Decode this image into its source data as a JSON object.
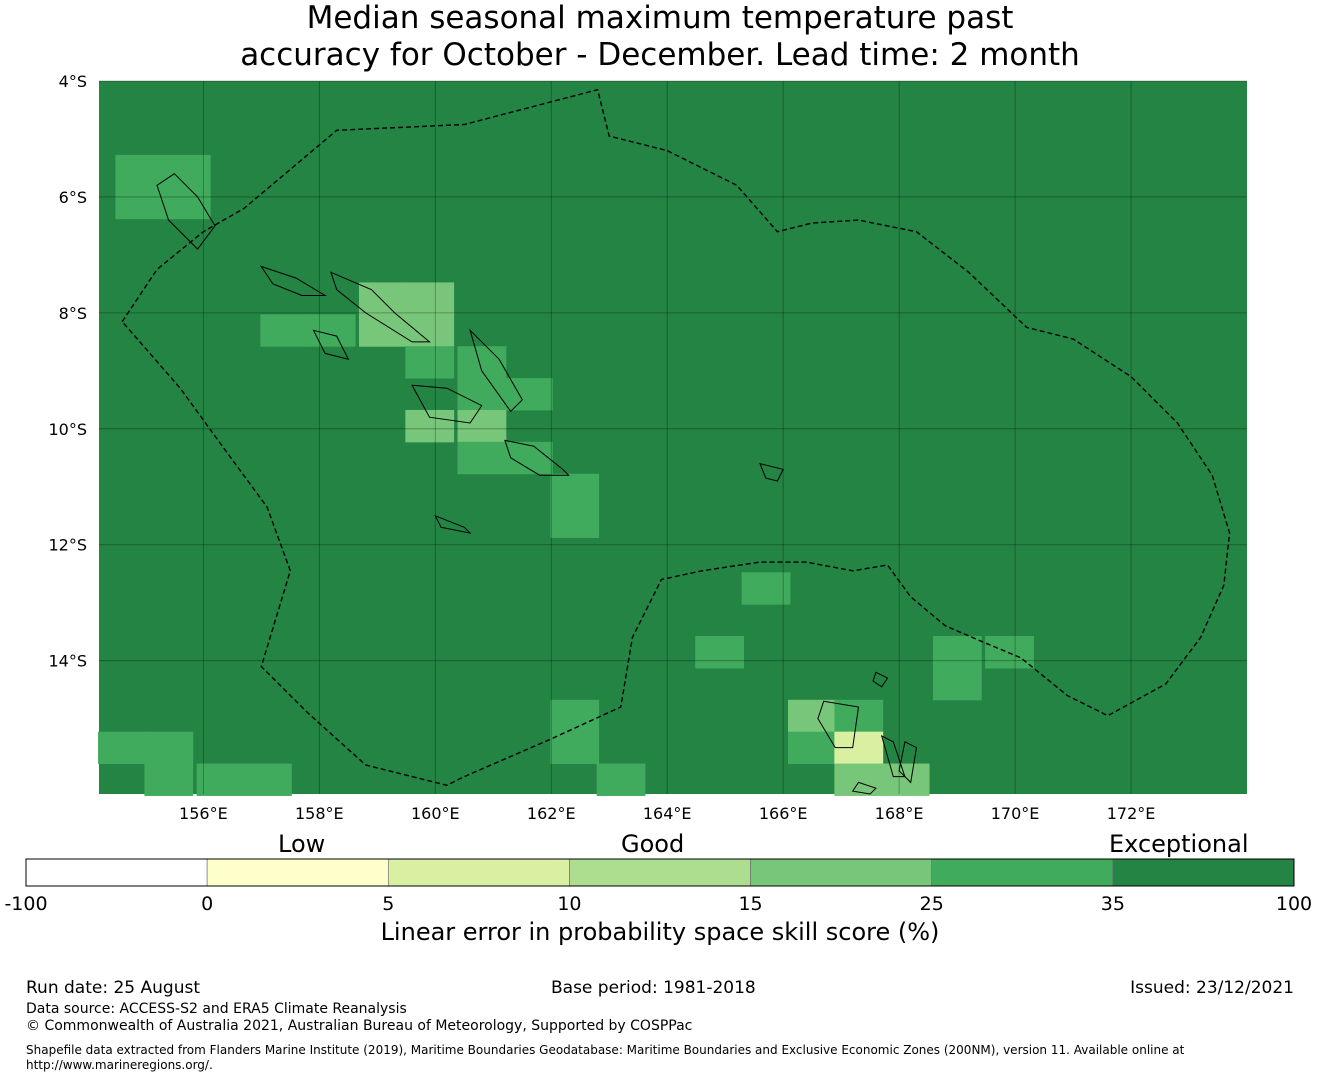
{
  "title": {
    "line1": "Median seasonal maximum temperature past",
    "line2": "accuracy for October - December. Lead time: 2 month"
  },
  "map": {
    "lat_range": [
      -16.3,
      -4
    ],
    "lon_range": [
      154.2,
      174
    ],
    "lat_ticks": [
      {
        "value": -4,
        "label": "4°S"
      },
      {
        "value": -6,
        "label": "6°S"
      },
      {
        "value": -8,
        "label": "8°S"
      },
      {
        "value": -10,
        "label": "10°S"
      },
      {
        "value": -12,
        "label": "12°S"
      },
      {
        "value": -14,
        "label": "14°S"
      }
    ],
    "lon_ticks": [
      {
        "value": 156,
        "label": "156°E"
      },
      {
        "value": 158,
        "label": "158°E"
      },
      {
        "value": 160,
        "label": "160°E"
      },
      {
        "value": 162,
        "label": "162°E"
      },
      {
        "value": 164,
        "label": "164°E"
      },
      {
        "value": 166,
        "label": "166°E"
      },
      {
        "value": 168,
        "label": "168°E"
      },
      {
        "value": 170,
        "label": "170°E"
      },
      {
        "value": 172,
        "label": "172°E"
      }
    ],
    "background_class": "35-100",
    "grid_cell_deg": 0.833,
    "cells": [
      {
        "lon": 154.9,
        "lat": -5.55,
        "cls": "25-35"
      },
      {
        "lon": 154.9,
        "lat": -6.1,
        "cls": "25-35"
      },
      {
        "lon": 155.7,
        "lat": -5.55,
        "cls": "25-35"
      },
      {
        "lon": 155.7,
        "lat": -6.1,
        "cls": "25-35"
      },
      {
        "lon": 159.1,
        "lat": -7.75,
        "cls": "15-25"
      },
      {
        "lon": 159.1,
        "lat": -8.3,
        "cls": "15-25"
      },
      {
        "lon": 159.9,
        "lat": -7.75,
        "cls": "15-25"
      },
      {
        "lon": 159.9,
        "lat": -8.3,
        "cls": "15-25"
      },
      {
        "lon": 157.4,
        "lat": -8.3,
        "cls": "25-35"
      },
      {
        "lon": 158.2,
        "lat": -8.3,
        "cls": "25-35"
      },
      {
        "lon": 159.9,
        "lat": -8.85,
        "cls": "25-35"
      },
      {
        "lon": 160.8,
        "lat": -8.85,
        "cls": "25-35"
      },
      {
        "lon": 160.8,
        "lat": -9.4,
        "cls": "25-35"
      },
      {
        "lon": 161.6,
        "lat": -9.4,
        "cls": "25-35"
      },
      {
        "lon": 159.9,
        "lat": -9.95,
        "cls": "15-25"
      },
      {
        "lon": 160.8,
        "lat": -9.95,
        "cls": "15-25"
      },
      {
        "lon": 160.8,
        "lat": -10.5,
        "cls": "25-35"
      },
      {
        "lon": 161.6,
        "lat": -10.5,
        "cls": "25-35"
      },
      {
        "lon": 162.4,
        "lat": -11.05,
        "cls": "25-35"
      },
      {
        "lon": 162.4,
        "lat": -11.6,
        "cls": "25-35"
      },
      {
        "lon": 165.7,
        "lat": -12.75,
        "cls": "25-35"
      },
      {
        "lon": 164.9,
        "lat": -13.85,
        "cls": "25-35"
      },
      {
        "lon": 169.0,
        "lat": -13.85,
        "cls": "25-35"
      },
      {
        "lon": 169.9,
        "lat": -13.85,
        "cls": "25-35"
      },
      {
        "lon": 169.0,
        "lat": -14.4,
        "cls": "25-35"
      },
      {
        "lon": 162.4,
        "lat": -14.95,
        "cls": "25-35"
      },
      {
        "lon": 162.4,
        "lat": -15.5,
        "cls": "25-35"
      },
      {
        "lon": 163.2,
        "lat": -16.05,
        "cls": "25-35"
      },
      {
        "lon": 166.5,
        "lat": -14.95,
        "cls": "15-25"
      },
      {
        "lon": 167.3,
        "lat": -14.95,
        "cls": "25-35"
      },
      {
        "lon": 166.5,
        "lat": -15.5,
        "cls": "25-35"
      },
      {
        "lon": 167.3,
        "lat": -15.5,
        "cls": "5-10"
      },
      {
        "lon": 167.3,
        "lat": -16.05,
        "cls": "15-25"
      },
      {
        "lon": 168.1,
        "lat": -16.05,
        "cls": "15-25"
      },
      {
        "lon": 154.6,
        "lat": -15.5,
        "cls": "25-35"
      },
      {
        "lon": 155.4,
        "lat": -15.5,
        "cls": "25-35"
      },
      {
        "lon": 155.4,
        "lat": -16.05,
        "cls": "25-35"
      },
      {
        "lon": 156.3,
        "lat": -16.05,
        "cls": "25-35"
      },
      {
        "lon": 157.1,
        "lat": -16.05,
        "cls": "25-35"
      }
    ],
    "eez_boundary_north": [
      [
        154.6,
        -8.15
      ],
      [
        155.2,
        -7.25
      ],
      [
        156.0,
        -6.6
      ],
      [
        156.7,
        -6.2
      ],
      [
        158.3,
        -4.85
      ],
      [
        160.5,
        -4.75
      ],
      [
        162.8,
        -4.15
      ],
      [
        163.0,
        -4.95
      ],
      [
        164.0,
        -5.2
      ],
      [
        165.2,
        -5.8
      ],
      [
        165.9,
        -6.6
      ],
      [
        166.5,
        -6.45
      ],
      [
        167.3,
        -6.4
      ],
      [
        168.3,
        -6.6
      ],
      [
        169.2,
        -7.3
      ],
      [
        170.2,
        -8.25
      ],
      [
        171.0,
        -8.45
      ],
      [
        172.0,
        -9.1
      ],
      [
        172.8,
        -9.9
      ],
      [
        173.4,
        -10.8
      ],
      [
        173.7,
        -11.8
      ],
      [
        173.6,
        -12.7
      ],
      [
        173.2,
        -13.6
      ],
      [
        172.6,
        -14.4
      ],
      [
        171.6,
        -14.95
      ],
      [
        170.9,
        -14.6
      ],
      [
        170.1,
        -13.95
      ],
      [
        169.5,
        -13.7
      ],
      [
        168.8,
        -13.4
      ],
      [
        168.2,
        -12.9
      ],
      [
        167.8,
        -12.35
      ],
      [
        167.2,
        -12.45
      ],
      [
        166.4,
        -12.3
      ],
      [
        165.6,
        -12.3
      ],
      [
        164.6,
        -12.45
      ],
      [
        163.9,
        -12.6
      ],
      [
        163.4,
        -13.6
      ],
      [
        163.2,
        -14.8
      ],
      [
        162.0,
        -15.35
      ],
      [
        160.5,
        -16.0
      ],
      [
        160.2,
        -16.15
      ],
      [
        158.8,
        -15.8
      ],
      [
        157.8,
        -14.9
      ],
      [
        157.0,
        -14.1
      ],
      [
        157.5,
        -12.45
      ],
      [
        157.1,
        -11.35
      ],
      [
        156.4,
        -10.4
      ],
      [
        155.6,
        -9.3
      ],
      [
        154.6,
        -8.15
      ]
    ],
    "islands": [
      [
        [
          155.5,
          -5.6
        ],
        [
          155.9,
          -6.0
        ],
        [
          156.2,
          -6.5
        ],
        [
          155.9,
          -6.9
        ],
        [
          155.4,
          -6.4
        ],
        [
          155.2,
          -5.8
        ]
      ],
      [
        [
          157.0,
          -7.2
        ],
        [
          157.6,
          -7.4
        ],
        [
          158.1,
          -7.7
        ],
        [
          157.7,
          -7.7
        ],
        [
          157.2,
          -7.5
        ]
      ],
      [
        [
          158.2,
          -7.3
        ],
        [
          158.9,
          -7.6
        ],
        [
          159.3,
          -8.0
        ],
        [
          159.9,
          -8.5
        ],
        [
          159.6,
          -8.5
        ],
        [
          158.8,
          -8.0
        ],
        [
          158.3,
          -7.6
        ]
      ],
      [
        [
          157.9,
          -8.3
        ],
        [
          158.3,
          -8.4
        ],
        [
          158.5,
          -8.8
        ],
        [
          158.1,
          -8.7
        ]
      ],
      [
        [
          160.6,
          -8.3
        ],
        [
          161.1,
          -8.8
        ],
        [
          161.5,
          -9.5
        ],
        [
          161.3,
          -9.7
        ],
        [
          160.8,
          -9.0
        ]
      ],
      [
        [
          159.6,
          -9.25
        ],
        [
          160.2,
          -9.3
        ],
        [
          160.8,
          -9.6
        ],
        [
          160.6,
          -9.9
        ],
        [
          159.9,
          -9.8
        ]
      ],
      [
        [
          161.2,
          -10.2
        ],
        [
          161.7,
          -10.3
        ],
        [
          162.2,
          -10.7
        ],
        [
          162.3,
          -10.8
        ],
        [
          161.8,
          -10.8
        ],
        [
          161.3,
          -10.5
        ]
      ],
      [
        [
          160.0,
          -11.5
        ],
        [
          160.5,
          -11.7
        ],
        [
          160.6,
          -11.8
        ],
        [
          160.1,
          -11.7
        ]
      ],
      [
        [
          165.6,
          -10.6
        ],
        [
          166.0,
          -10.7
        ],
        [
          165.9,
          -10.9
        ],
        [
          165.7,
          -10.85
        ]
      ],
      [
        [
          166.7,
          -14.7
        ],
        [
          167.3,
          -14.8
        ],
        [
          167.2,
          -15.5
        ],
        [
          166.9,
          -15.5
        ],
        [
          166.6,
          -15.0
        ]
      ],
      [
        [
          167.7,
          -15.3
        ],
        [
          167.9,
          -15.4
        ],
        [
          168.1,
          -16.0
        ],
        [
          167.9,
          -16.0
        ]
      ],
      [
        [
          168.1,
          -15.4
        ],
        [
          168.3,
          -15.5
        ],
        [
          168.2,
          -16.1
        ],
        [
          168.0,
          -15.9
        ]
      ],
      [
        [
          167.6,
          -14.2
        ],
        [
          167.8,
          -14.3
        ],
        [
          167.7,
          -14.45
        ],
        [
          167.55,
          -14.35
        ]
      ],
      [
        [
          167.3,
          -16.1
        ],
        [
          167.6,
          -16.2
        ],
        [
          167.5,
          -16.3
        ],
        [
          167.2,
          -16.25
        ]
      ]
    ]
  },
  "colorbar": {
    "category_labels": [
      "Low",
      "Good",
      "Exceptional"
    ],
    "title": "Linear error in probability space skill score (%)",
    "bins": [
      {
        "key": "-100-0",
        "from": "-100",
        "to": "0",
        "color": "#ffffff"
      },
      {
        "key": "0-5",
        "from": "0",
        "to": "5",
        "color": "#ffffcc"
      },
      {
        "key": "5-10",
        "from": "5",
        "to": "10",
        "color": "#d9f0a3"
      },
      {
        "key": "10-15",
        "from": "10",
        "to": "15",
        "color": "#addd8e"
      },
      {
        "key": "15-25",
        "from": "15",
        "to": "25",
        "color": "#78c679"
      },
      {
        "key": "25-35",
        "from": "25",
        "to": "35",
        "color": "#41ab5d"
      },
      {
        "key": "35-100",
        "from": "35",
        "to": "100",
        "color": "#238443"
      }
    ],
    "tick_labels": [
      "-100",
      "0",
      "5",
      "10",
      "15",
      "25",
      "35",
      "100"
    ]
  },
  "footer": {
    "run_date": "Run date: 25 August",
    "base_period": "Base period: 1981-2018",
    "issued": "Issued: 23/12/2021",
    "data_source": "Data source: ACCESS-S2 and ERA5 Climate Reanalysis",
    "copyright": "© Commonwealth of Australia 2021, Australian Bureau of Meteorology, Supported by COSPPac",
    "shapefile": "Shapefile data extracted from Flanders Marine Institute (2019), Maritime Boundaries Geodatabase: Maritime Boundaries and Exclusive Economic Zones (200NM), version 11. Available online at http://www.marineregions.org/."
  }
}
